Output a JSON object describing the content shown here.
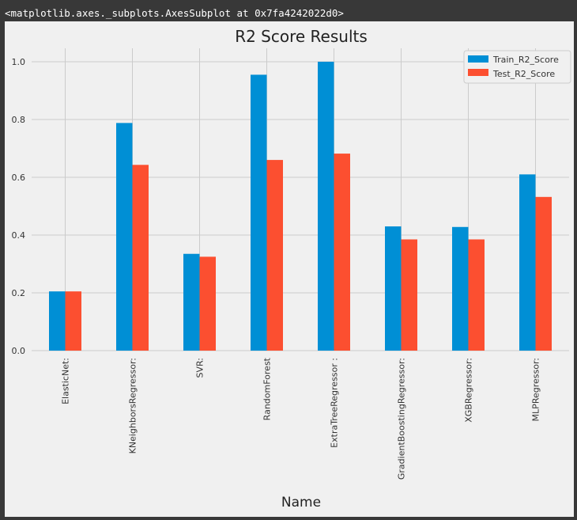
{
  "output": {
    "repr": "<matplotlib.axes._subplots.AxesSubplot at 0x7fa4242022d0>"
  },
  "colors": {
    "train": "#008fd5",
    "test": "#fc4f30",
    "grid": "#cbcbcb",
    "figure_bg": "#f0f0f0",
    "outer_bg": "#383838"
  },
  "chart_data": {
    "type": "bar",
    "title": "R2 Score Results",
    "xlabel": "Name",
    "ylabel": "",
    "ylim": [
      0,
      1.05
    ],
    "yticks": [
      0.0,
      0.2,
      0.4,
      0.6,
      0.8,
      1.0
    ],
    "ytick_labels": [
      "0.0",
      "0.2",
      "0.4",
      "0.6",
      "0.8",
      "1.0"
    ],
    "grid": true,
    "legend_position": "top-right",
    "categories": [
      "ElasticNet:",
      "KNeighborsRegressor:",
      "SVR:",
      "RandomForest",
      "ExtraTreeRegressor :",
      "GradientBoostingRegressor:",
      "XGBRegressor:",
      "MLPRegressor:"
    ],
    "series": [
      {
        "name": "Train_R2_Score",
        "color": "#008fd5",
        "values": [
          0.205,
          0.788,
          0.335,
          0.955,
          1.0,
          0.43,
          0.428,
          0.61
        ]
      },
      {
        "name": "Test_R2_Score",
        "color": "#fc4f30",
        "values": [
          0.205,
          0.643,
          0.325,
          0.66,
          0.682,
          0.385,
          0.385,
          0.532
        ]
      }
    ]
  }
}
